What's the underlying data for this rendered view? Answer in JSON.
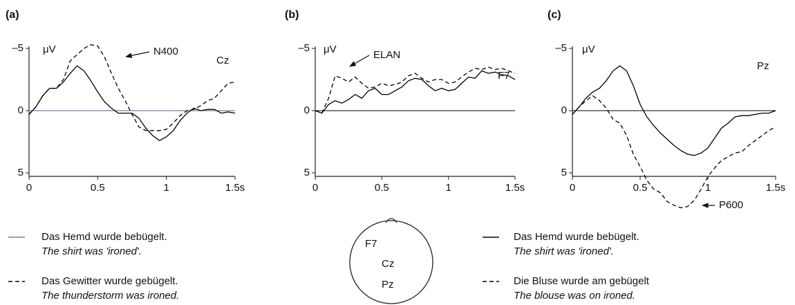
{
  "chart_data": [
    {
      "type": "line",
      "panel_label": "(a)",
      "electrode": "Cz",
      "y_label": "μV",
      "annotation": "N400",
      "y_inverted": true,
      "x": [
        0,
        0.05,
        0.1,
        0.15,
        0.2,
        0.25,
        0.3,
        0.35,
        0.4,
        0.45,
        0.5,
        0.55,
        0.6,
        0.65,
        0.7,
        0.75,
        0.8,
        0.85,
        0.9,
        0.95,
        1.0,
        1.05,
        1.1,
        1.15,
        1.2,
        1.25,
        1.3,
        1.35,
        1.4,
        1.45,
        1.5
      ],
      "xlim": [
        0,
        1.5
      ],
      "xticks": [
        0,
        0.5,
        1,
        {
          "value": 1.5,
          "label": "1.5s"
        }
      ],
      "ylim": [
        -6.5,
        8
      ],
      "yticks": [
        {
          "value": -5,
          "label": "–5"
        },
        0,
        5
      ],
      "series": [
        {
          "color": "#000000",
          "dash": false,
          "values": [
            0.3,
            -0.3,
            -1.2,
            -1.8,
            -1.8,
            -2.3,
            -3.0,
            -3.6,
            -3.2,
            -2.4,
            -1.5,
            -0.7,
            -0.2,
            0.2,
            0.2,
            0.2,
            0.6,
            1.4,
            2.0,
            2.4,
            2.1,
            1.6,
            0.8,
            0.2,
            -0.2,
            0.0,
            -0.1,
            -0.1,
            0.2,
            0.1,
            0.2
          ]
        },
        {
          "color": "#000000",
          "dash": true,
          "values": [
            0.3,
            -0.3,
            -1.2,
            -1.8,
            -1.8,
            -2.5,
            -4.0,
            -4.5,
            -5.0,
            -5.3,
            -5.2,
            -4.3,
            -3.0,
            -1.8,
            -0.8,
            0.3,
            1.3,
            1.6,
            1.6,
            1.6,
            1.5,
            1.0,
            0.4,
            0.0,
            -0.1,
            -0.4,
            -0.8,
            -1.0,
            -1.6,
            -2.2,
            -2.3
          ]
        }
      ]
    },
    {
      "type": "line",
      "panel_label": "(b)",
      "electrode": "F7",
      "y_label": "μV",
      "annotation": "ELAN",
      "y_inverted": true,
      "x": [
        0,
        0.05,
        0.1,
        0.15,
        0.2,
        0.25,
        0.3,
        0.35,
        0.4,
        0.45,
        0.5,
        0.55,
        0.6,
        0.65,
        0.7,
        0.75,
        0.8,
        0.85,
        0.9,
        0.95,
        1.0,
        1.05,
        1.1,
        1.15,
        1.2,
        1.25,
        1.3,
        1.35,
        1.4,
        1.45,
        1.5
      ],
      "xlim": [
        0,
        1.5
      ],
      "xticks": [
        0,
        0.5,
        1,
        {
          "value": 1.5,
          "label": "1.5s"
        }
      ],
      "ylim": [
        -6.5,
        8
      ],
      "yticks": [
        {
          "value": -5,
          "label": "–5"
        },
        0,
        5
      ],
      "series": [
        {
          "color": "#000000",
          "dash": false,
          "values": [
            0,
            0.2,
            -0.5,
            -0.8,
            -0.6,
            -0.9,
            -1.3,
            -1.0,
            -1.6,
            -1.8,
            -1.3,
            -1.3,
            -1.6,
            -1.9,
            -2.4,
            -2.6,
            -2.5,
            -2.0,
            -1.6,
            -1.8,
            -1.6,
            -1.7,
            -2.2,
            -2.7,
            -2.6,
            -3.2,
            -3.0,
            -3.1,
            -2.9,
            -2.8,
            -2.5
          ]
        },
        {
          "color": "#000000",
          "dash": true,
          "values": [
            0,
            0.2,
            -1.0,
            -2.8,
            -2.6,
            -2.3,
            -2.7,
            -2.2,
            -1.8,
            -1.9,
            -2.2,
            -2.0,
            -2.1,
            -2.3,
            -2.8,
            -3.0,
            -2.6,
            -2.3,
            -2.5,
            -2.5,
            -2.2,
            -2.3,
            -2.7,
            -3.1,
            -3.4,
            -3.3,
            -3.5,
            -3.3,
            -3.4,
            -3.2,
            -3.0
          ]
        }
      ]
    },
    {
      "type": "line",
      "panel_label": "(c)",
      "electrode": "Pz",
      "y_label": "μV",
      "annotation": "P600",
      "y_inverted": true,
      "x": [
        0,
        0.05,
        0.1,
        0.15,
        0.2,
        0.25,
        0.3,
        0.35,
        0.4,
        0.45,
        0.5,
        0.55,
        0.6,
        0.65,
        0.7,
        0.75,
        0.8,
        0.85,
        0.9,
        0.95,
        1.0,
        1.05,
        1.1,
        1.15,
        1.2,
        1.25,
        1.3,
        1.35,
        1.4,
        1.45,
        1.5
      ],
      "xlim": [
        0,
        1.5
      ],
      "xticks": [
        0,
        0.5,
        1,
        {
          "value": 1.5,
          "label": "1.5s"
        }
      ],
      "ylim": [
        -6.5,
        8
      ],
      "yticks": [
        {
          "value": -5,
          "label": "–5"
        },
        0,
        5
      ],
      "series": [
        {
          "color": "#000000",
          "dash": false,
          "values": [
            0.3,
            -0.3,
            -1.0,
            -1.5,
            -1.8,
            -2.4,
            -3.2,
            -3.6,
            -3.2,
            -2.0,
            -0.5,
            0.5,
            1.2,
            1.8,
            2.3,
            2.8,
            3.2,
            3.5,
            3.6,
            3.4,
            3.0,
            2.2,
            1.4,
            1.0,
            0.5,
            0.4,
            0.4,
            0.3,
            0.2,
            0.2,
            0.0
          ]
        },
        {
          "color": "#000000",
          "dash": true,
          "values": [
            0.3,
            -0.3,
            -0.8,
            -1.2,
            -0.8,
            -0.2,
            0.7,
            1.0,
            2.0,
            3.5,
            4.5,
            5.6,
            6.3,
            6.6,
            7.3,
            7.6,
            7.8,
            7.7,
            7.2,
            6.3,
            5.3,
            4.6,
            4.0,
            3.7,
            3.4,
            3.3,
            2.8,
            2.4,
            2.0,
            1.6,
            1.3
          ]
        }
      ]
    }
  ],
  "legends": [
    {
      "entries": [
        {
          "text": "Das Hemd wurde bebügelt.",
          "translation": "The shirt was 'ironed'.",
          "dash": false,
          "color": "#7a7aa8"
        },
        {
          "text": "Das Gewitter wurde gebügelt.",
          "translation": "The thunderstorm was ironed.",
          "dash": true,
          "color": "#000000"
        }
      ]
    },
    {
      "entries": [
        {
          "text": "Das Hemd wurde bebügelt.",
          "translation": "The shirt was 'ironed'.",
          "dash": false,
          "color": "#000000"
        },
        {
          "text": "Die Bluse wurde am gebügelt",
          "translation": "The blouse was on ironed.",
          "dash": true,
          "color": "#000000"
        }
      ]
    }
  ],
  "head_diagram": {
    "labels": [
      "F7",
      "Cz",
      "Pz"
    ]
  }
}
